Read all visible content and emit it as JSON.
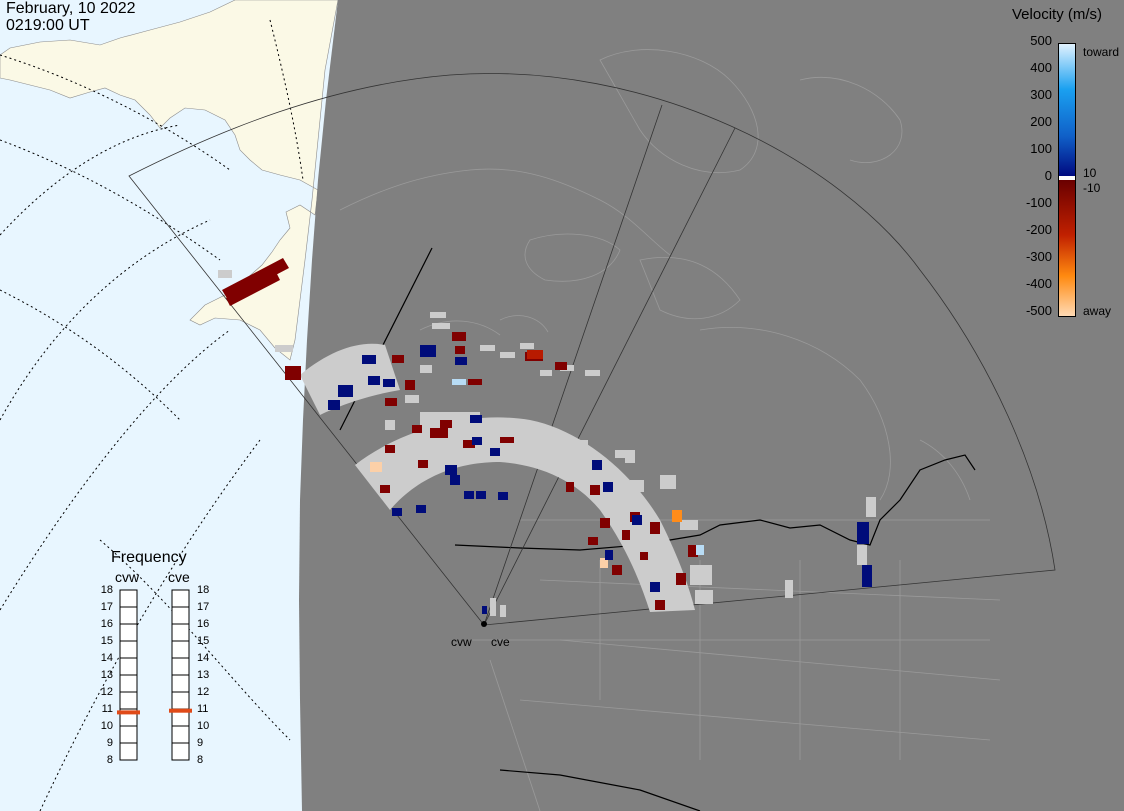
{
  "header": {
    "date": "February, 10 2022",
    "time": "0219:00 UT"
  },
  "velocity_legend": {
    "title": "Velocity (m/s)",
    "ticks": [
      "500",
      "400",
      "300",
      "200",
      "100",
      "0",
      "-100",
      "-200",
      "-300",
      "-400",
      "-500"
    ],
    "tick_values": [
      500,
      400,
      300,
      200,
      100,
      0,
      -100,
      -200,
      -300,
      -400,
      -500
    ],
    "labels": {
      "toward": "toward",
      "away": "away",
      "plus_threshold": "10",
      "minus_threshold": "-10"
    },
    "range": [
      -500,
      500
    ],
    "colors": {
      "toward_high": "#d8eefc",
      "toward_mid": "#1f8ad8",
      "toward_low": "#0a1a80",
      "zero": "#ffffff",
      "away_low": "#7a0606",
      "away_mid": "#e05a10",
      "away_high": "#fcd2ac"
    }
  },
  "frequency_panel": {
    "title": "Frequency",
    "radars": [
      {
        "name": "cvw",
        "frequency_mhz": 10.8
      },
      {
        "name": "cve",
        "frequency_mhz": 10.9
      }
    ],
    "scale": [
      "18",
      "17",
      "16",
      "15",
      "14",
      "13",
      "12",
      "11",
      "10",
      "9",
      "8"
    ],
    "range_mhz": [
      8,
      18
    ],
    "marker_color": "#e04a18"
  },
  "radar_sites": {
    "cvw_label": "cvw",
    "cve_label": "cve"
  },
  "map_colors": {
    "ocean_day": "#e8f6ff",
    "land_day": "#fbf9e6",
    "night": "#808080",
    "ground_scatter": "#cccccc",
    "borders": "#000000",
    "state_lines": "#9a9a9a"
  }
}
